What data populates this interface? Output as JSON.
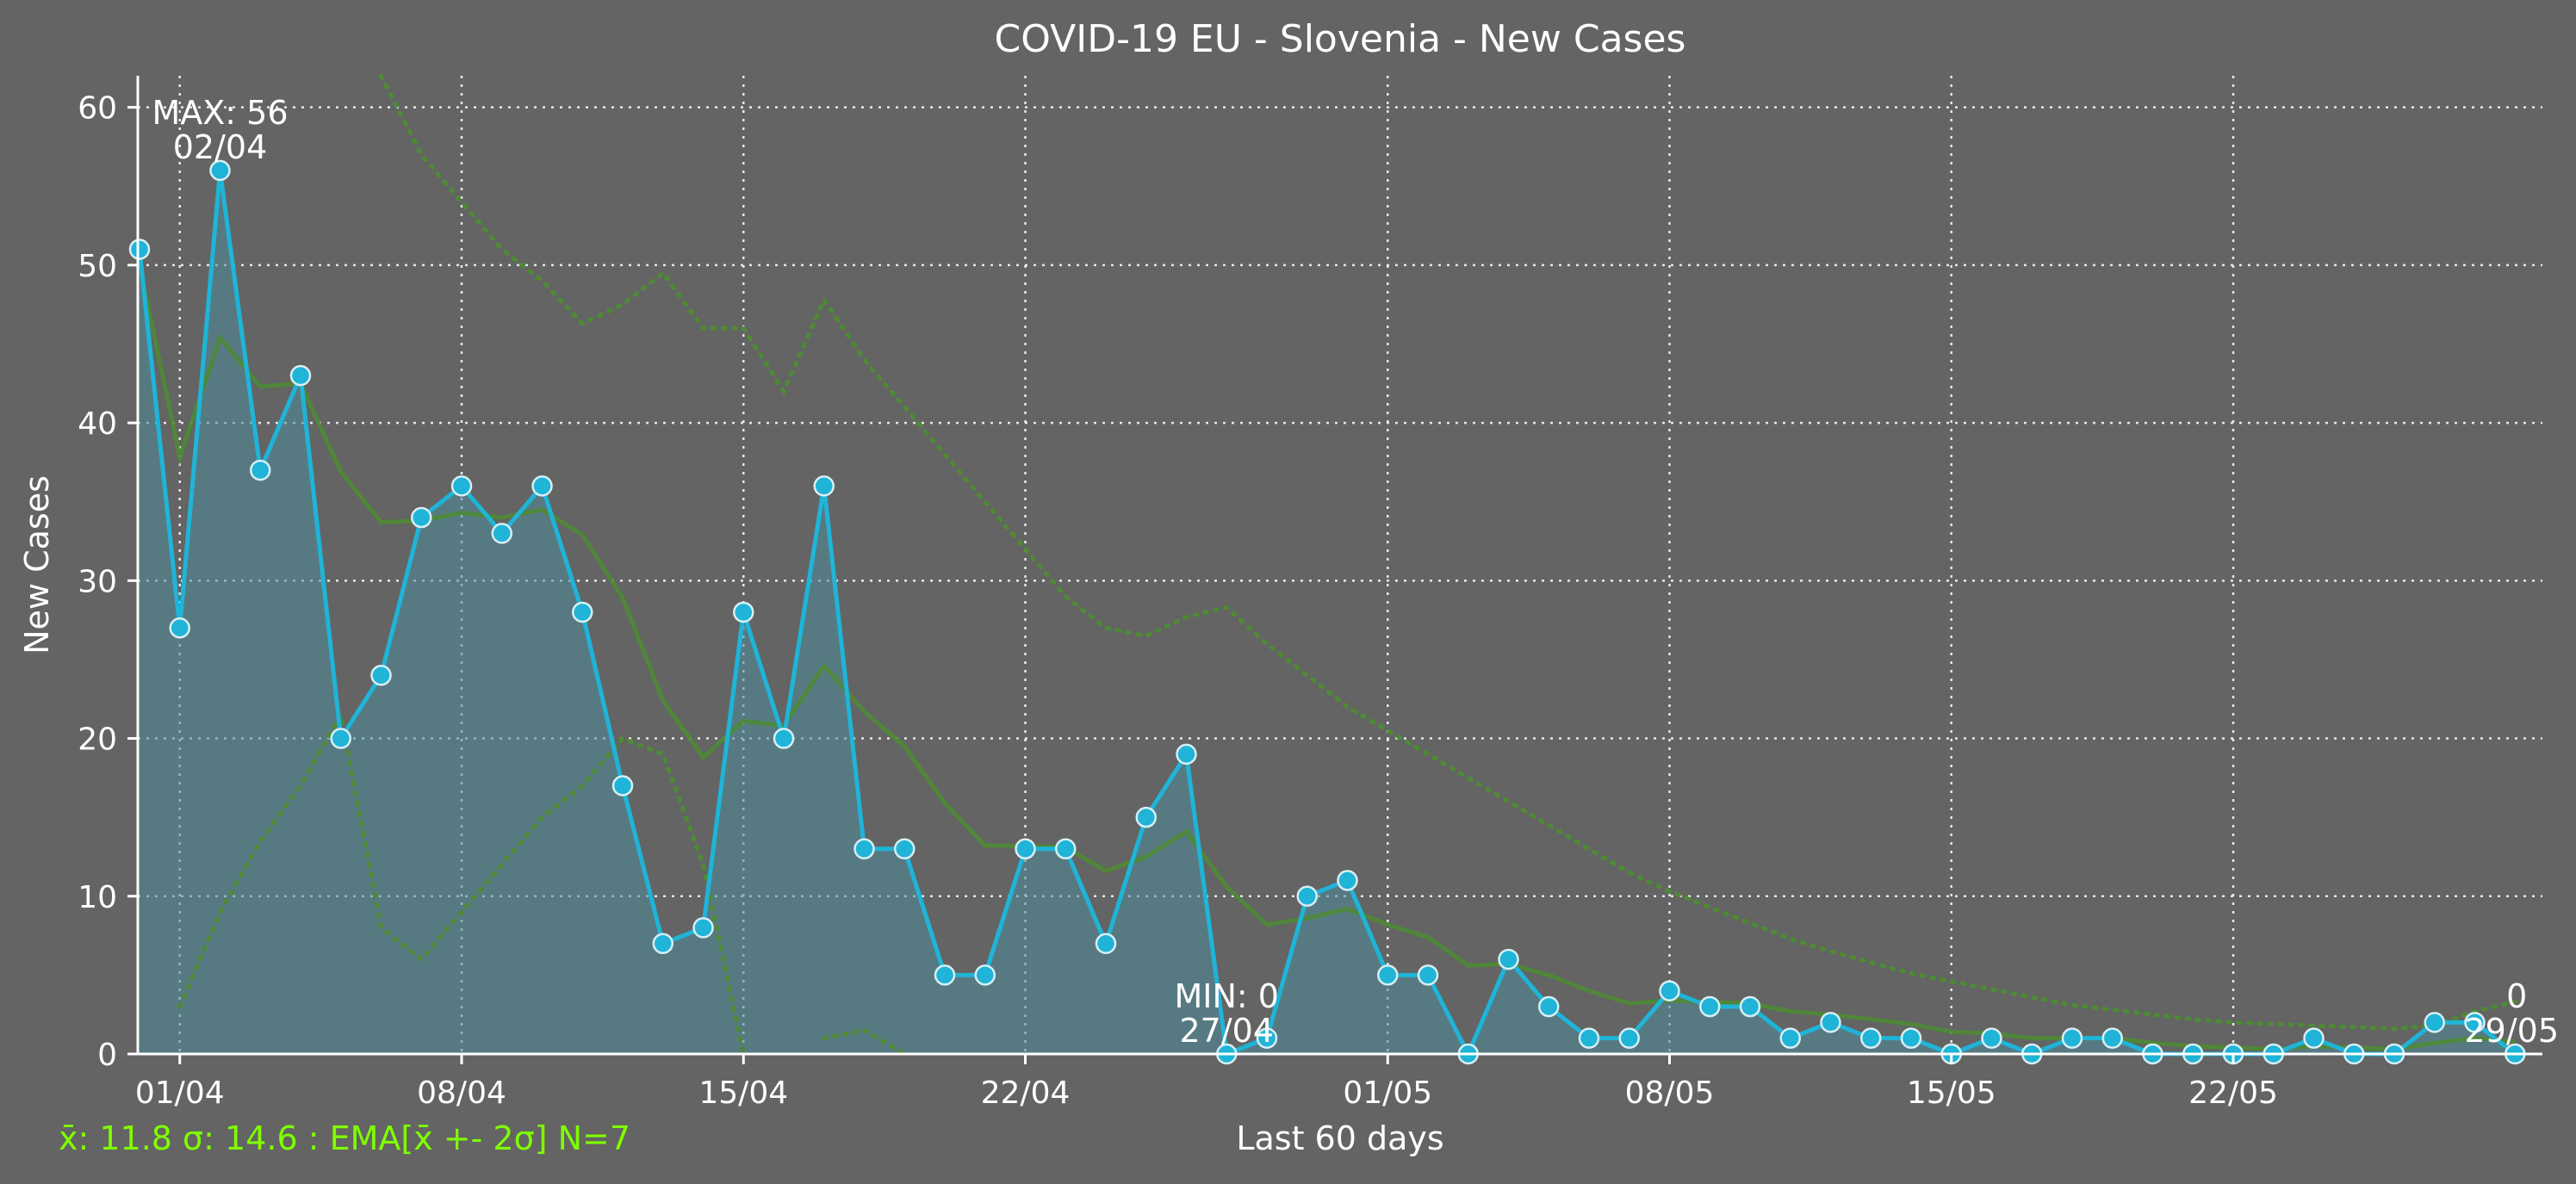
{
  "colors": {
    "background": "#636463",
    "series": "#1fb4d8",
    "fill": "#4f8d9c",
    "ema": "#4e8a35",
    "band": "#4e8a35",
    "footer": "#7fff00",
    "text": "#ffffff"
  },
  "footer_text": "x̄: 11.8 σ: 14.6 : EMA[x̄ +- 2σ] N=7",
  "chart_data": {
    "type": "line",
    "title": "COVID-19 EU - Slovenia - New Cases",
    "xlabel": "Last 60 days",
    "ylabel": "New Cases",
    "ylim": [
      0,
      62
    ],
    "yticks": [
      0,
      10,
      20,
      30,
      40,
      50,
      60
    ],
    "xtick_labels": [
      "01/04",
      "08/04",
      "15/04",
      "22/04",
      "01/05",
      "08/05",
      "15/05",
      "22/05"
    ],
    "xtick_dates": [
      "2020-04-01",
      "2020-04-08",
      "2020-04-15",
      "2020-04-22",
      "2020-05-01",
      "2020-05-08",
      "2020-05-15",
      "2020-05-22"
    ],
    "date_range": [
      "2020-03-31",
      "2020-05-29"
    ],
    "grid": true,
    "series": [
      {
        "values": [
          51,
          27,
          56,
          37,
          43,
          20,
          24,
          34,
          36,
          33,
          36,
          28,
          17,
          7,
          8,
          28,
          20,
          36,
          13,
          13,
          5,
          5,
          13,
          13,
          7,
          15,
          19,
          0,
          1,
          10,
          11,
          5,
          5,
          0,
          6,
          3,
          1,
          1,
          4,
          3,
          3,
          1,
          2,
          1,
          1,
          0,
          1,
          0,
          1,
          1,
          0,
          0,
          0,
          0,
          1,
          0,
          0,
          2,
          2,
          0
        ]
      },
      {
        "values": [
          50,
          37.8,
          45.4,
          42.3,
          42.5,
          36.9,
          33.7,
          33.8,
          34.3,
          34.0,
          34.5,
          32.9,
          28.9,
          22.4,
          18.8,
          21.1,
          20.8,
          24.6,
          21.7,
          19.5,
          15.9,
          13.2,
          13.2,
          13.1,
          11.6,
          12.5,
          14.1,
          10.6,
          8.2,
          8.6,
          9.2,
          8.2,
          7.4,
          5.6,
          5.7,
          5.0,
          4.0,
          3.2,
          3.4,
          3.3,
          3.2,
          2.7,
          2.5,
          2.2,
          1.9,
          1.4,
          1.3,
          1.0,
          1.0,
          1.0,
          0.7,
          0.5,
          0.4,
          0.3,
          0.5,
          0.4,
          0.3,
          0.7,
          1.0,
          0.8
        ]
      },
      {
        "values": [
          null,
          null,
          null,
          null,
          null,
          null,
          62,
          57,
          54,
          51,
          49,
          46.3,
          47.5,
          49.5,
          46,
          46,
          42,
          47.8,
          44,
          41,
          38,
          35,
          32,
          29,
          27,
          26.5,
          27.7,
          28.3,
          26,
          24,
          22,
          20.5,
          19,
          17.5,
          16,
          14.5,
          13,
          11.5,
          10.3,
          9.3,
          8.3,
          7.3,
          6.5,
          5.8,
          5.1,
          4.6,
          4.1,
          3.6,
          3.1,
          2.8,
          2.5,
          2.2,
          2.0,
          1.9,
          1.8,
          1.7,
          1.6,
          1.8,
          2.7,
          3.3
        ]
      },
      {
        "values": [
          null,
          3,
          9,
          13.5,
          17,
          21.5,
          8,
          6,
          9,
          12,
          15,
          17,
          20,
          19,
          12,
          0,
          null,
          1,
          1.5,
          0,
          null,
          null,
          null,
          null,
          null,
          null,
          null,
          null,
          null,
          null,
          null,
          null,
          null,
          null,
          null,
          null,
          null,
          null,
          null,
          null,
          null,
          null,
          null,
          null,
          null,
          null,
          null,
          null,
          null,
          null,
          null,
          null,
          null,
          null,
          null,
          null,
          null,
          null,
          null,
          null
        ]
      }
    ],
    "annotations": [
      {
        "line1": "MAX: 56",
        "line2": "02/04",
        "index": 2,
        "y": 56
      },
      {
        "line1": "MIN: 0",
        "line2": "27/04",
        "index": 27,
        "y": 0
      },
      {
        "line1": "0",
        "line2": "29/05",
        "index": 59,
        "y": 0
      }
    ]
  }
}
